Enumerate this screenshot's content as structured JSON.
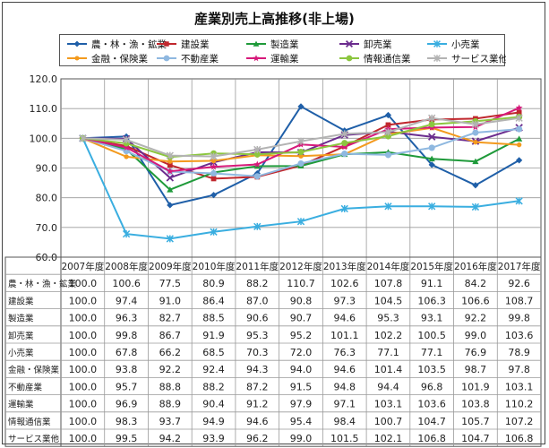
{
  "chart_data": {
    "type": "line",
    "title": "産業別売上高推移(非上場)",
    "x": [
      "2007年度",
      "2008年度",
      "2009年度",
      "2010年度",
      "2011年度",
      "2012年度",
      "2013年度",
      "2014年度",
      "2015年度",
      "2016年度",
      "2017年度"
    ],
    "ylim": [
      60,
      120
    ],
    "yticks": [
      "60.0",
      "70.0",
      "80.0",
      "90.0",
      "100.0",
      "110.0",
      "120.0"
    ],
    "grid": true,
    "legend_position": "top",
    "series": [
      {
        "name": "農・林・漁・鉱業",
        "color": "#1f5fa8",
        "marker": "diamond",
        "values": [
          100.0,
          100.6,
          77.5,
          80.9,
          88.2,
          110.7,
          102.6,
          107.8,
          91.1,
          84.2,
          92.6
        ],
        "labels": [
          "100.0",
          "100.6",
          "77.5",
          "80.9",
          "88.2",
          "110.7",
          "102.6",
          "107.8",
          "91.1",
          "84.2",
          "92.6"
        ]
      },
      {
        "name": "建設業",
        "color": "#c0272d",
        "marker": "square",
        "values": [
          100.0,
          97.4,
          91.0,
          86.4,
          87.0,
          90.8,
          97.3,
          104.5,
          106.3,
          106.6,
          108.7
        ],
        "labels": [
          "100.0",
          "97.4",
          "91.0",
          "86.4",
          "87.0",
          "90.8",
          "97.3",
          "104.5",
          "106.3",
          "106.6",
          "108.7"
        ]
      },
      {
        "name": "製造業",
        "color": "#1f9a3a",
        "marker": "triangle",
        "values": [
          100.0,
          96.3,
          82.7,
          88.5,
          90.6,
          90.7,
          94.6,
          95.3,
          93.1,
          92.2,
          99.8
        ],
        "labels": [
          "100.0",
          "96.3",
          "82.7",
          "88.5",
          "90.6",
          "90.7",
          "94.6",
          "95.3",
          "93.1",
          "92.2",
          "99.8"
        ]
      },
      {
        "name": "卸売業",
        "color": "#6b2c8e",
        "marker": "x",
        "values": [
          100.0,
          99.8,
          86.7,
          91.9,
          95.3,
          95.2,
          101.1,
          102.2,
          100.5,
          99.0,
          103.6
        ],
        "labels": [
          "100.0",
          "99.8",
          "86.7",
          "91.9",
          "95.3",
          "95.2",
          "101.1",
          "102.2",
          "100.5",
          "99.0",
          "103.6"
        ]
      },
      {
        "name": "小売業",
        "color": "#3aaee0",
        "marker": "asterisk",
        "values": [
          100.0,
          67.8,
          66.2,
          68.5,
          70.3,
          72.0,
          76.3,
          77.1,
          77.1,
          76.9,
          78.9
        ],
        "labels": [
          "100.0",
          "67.8",
          "66.2",
          "68.5",
          "70.3",
          "72.0",
          "76.3",
          "77.1",
          "77.1",
          "76.9",
          "78.9"
        ]
      },
      {
        "name": "金融・保険業",
        "color": "#f39a1e",
        "marker": "dot",
        "values": [
          100.0,
          93.8,
          92.2,
          92.4,
          94.3,
          94.0,
          94.6,
          101.4,
          103.5,
          98.7,
          97.8
        ],
        "labels": [
          "100.0",
          "93.8",
          "92.2",
          "92.4",
          "94.3",
          "94.0",
          "94.6",
          "101.4",
          "103.5",
          "98.7",
          "97.8"
        ]
      },
      {
        "name": "不動産業",
        "color": "#8fb8e0",
        "marker": "circle",
        "values": [
          100.0,
          95.7,
          88.8,
          88.2,
          87.2,
          91.5,
          94.8,
          94.4,
          96.8,
          101.9,
          103.1
        ],
        "labels": [
          "100.0",
          "95.7",
          "88.8",
          "88.2",
          "87.2",
          "91.5",
          "94.8",
          "94.4",
          "96.8",
          "101.9",
          "103.1"
        ]
      },
      {
        "name": "運輸業",
        "color": "#d6197a",
        "marker": "star",
        "values": [
          100.0,
          96.9,
          88.9,
          90.4,
          91.2,
          97.9,
          97.1,
          103.1,
          103.6,
          103.8,
          110.2
        ],
        "labels": [
          "100.0",
          "96.9",
          "88.9",
          "90.4",
          "91.2",
          "97.9",
          "97.1",
          "103.1",
          "103.6",
          "103.8",
          "110.2"
        ]
      },
      {
        "name": "情報通信業",
        "color": "#8cc63f",
        "marker": "circle",
        "values": [
          100.0,
          98.3,
          93.7,
          94.9,
          94.6,
          95.4,
          98.4,
          100.7,
          104.7,
          105.7,
          107.2
        ],
        "labels": [
          "100.0",
          "98.3",
          "93.7",
          "94.9",
          "94.6",
          "95.4",
          "98.4",
          "100.7",
          "104.7",
          "105.7",
          "107.2"
        ]
      },
      {
        "name": "サービス業他",
        "color": "#b3b3b3",
        "marker": "asterisk",
        "values": [
          100.0,
          99.5,
          94.2,
          93.9,
          96.2,
          99.0,
          101.5,
          102.1,
          106.8,
          104.7,
          106.8
        ],
        "labels": [
          "100.0",
          "99.5",
          "94.2",
          "93.9",
          "96.2",
          "99.0",
          "101.5",
          "102.1",
          "106.8",
          "104.7",
          "106.8"
        ]
      }
    ]
  }
}
